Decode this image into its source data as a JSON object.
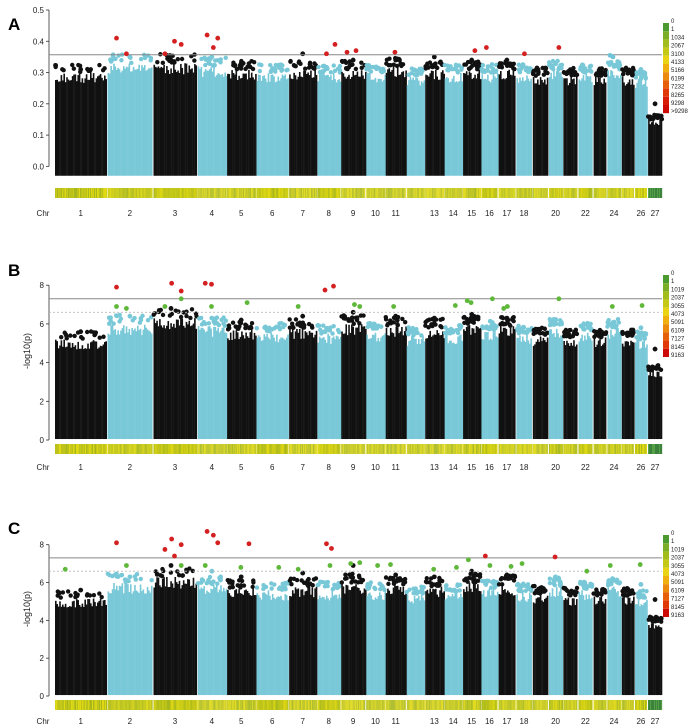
{
  "chart_data": [
    {
      "type": "scatter",
      "panel": "A",
      "ylabel": "",
      "ylim": [
        -0.05,
        0.5
      ],
      "yticks": [
        0.0,
        0.1,
        0.2,
        0.3,
        0.4,
        0.5
      ],
      "ytick_labels": [
        "0.0",
        "0.1",
        "0.2",
        "0.3",
        "0.4",
        "0.5"
      ],
      "thresholds": [
        0.357
      ],
      "dashed_thresholds": [],
      "xlabel_prefix": "Chr",
      "chromosome_labels": [
        "1",
        "2",
        "3",
        "4",
        "5",
        "6",
        "7",
        "8",
        "9",
        "10",
        "11",
        "13",
        "14",
        "15",
        "16",
        "17",
        "18",
        "20",
        "22",
        "24",
        "26",
        "27"
      ],
      "legend": [
        "0",
        "1",
        "1034",
        "2067",
        "3100",
        "4133",
        "5166",
        "6199",
        "7232",
        "8265",
        "9298",
        ">9298"
      ],
      "legend_colors": [
        "#2a7a2a",
        "#4a9a30",
        "#7aae28",
        "#a2bc1c",
        "#c6c818",
        "#e8d414",
        "#f0b010",
        "#ec8a0e",
        "#e6600c",
        "#e03a0a",
        "#d81e08",
        "#cc0a06"
      ],
      "series": [
        {
          "name": "significant",
          "color": "#d42020",
          "points": [
            [
              2,
              0.41
            ],
            [
              2,
              0.36
            ],
            [
              3,
              0.39
            ],
            [
              3,
              0.36
            ],
            [
              3,
              0.4
            ],
            [
              4,
              0.41
            ],
            [
              4,
              0.42
            ],
            [
              4,
              0.38
            ],
            [
              8,
              0.39
            ],
            [
              8,
              0.36
            ],
            [
              9,
              0.37
            ],
            [
              9,
              0.365
            ],
            [
              11,
              0.365
            ],
            [
              15,
              0.37
            ],
            [
              16,
              0.38
            ],
            [
              18,
              0.36
            ],
            [
              20,
              0.38
            ]
          ]
        },
        {
          "name": "top-non-significant",
          "color": "#6fc4d8",
          "points": [
            [
              24,
              0.355
            ],
            [
              24,
              0.35
            ]
          ]
        }
      ],
      "top_black": [
        [
          1,
          0.31
        ],
        [
          2,
          0.35
        ],
        [
          3,
          0.34
        ],
        [
          4,
          0.35
        ],
        [
          5,
          0.33
        ],
        [
          7,
          0.36
        ],
        [
          9,
          0.34
        ],
        [
          11,
          0.34
        ],
        [
          13,
          0.35
        ],
        [
          15,
          0.34
        ],
        [
          17,
          0.34
        ],
        [
          20,
          0.33
        ],
        [
          26,
          0.31
        ],
        [
          27,
          0.2
        ]
      ],
      "cloud_top": {
        "1": 0.3,
        "2": 0.33,
        "3": 0.33,
        "4": 0.32,
        "5": 0.31,
        "6": 0.3,
        "7": 0.31,
        "8": 0.3,
        "9": 0.31,
        "10": 0.3,
        "11": 0.32,
        "12": 0.29,
        "13": 0.31,
        "14": 0.3,
        "15": 0.31,
        "16": 0.3,
        "17": 0.31,
        "18": 0.3,
        "19": 0.29,
        "20": 0.31,
        "21": 0.29,
        "22": 0.3,
        "23": 0.29,
        "24": 0.31,
        "25": 0.29,
        "26": 0.28,
        "27": 0.15
      },
      "floor": -0.03
    },
    {
      "type": "scatter",
      "panel": "B",
      "ylabel": "-log10(p)",
      "ylim": [
        0,
        9.2
      ],
      "yticks": [
        0,
        2,
        4,
        6,
        8
      ],
      "ytick_labels": [
        "0",
        "2",
        "4",
        "6",
        "8"
      ],
      "thresholds": [
        7.3
      ],
      "dashed_thresholds": [
        6.6
      ],
      "xlabel_prefix": "Chr",
      "chromosome_labels": [
        "1",
        "2",
        "3",
        "4",
        "5",
        "6",
        "7",
        "8",
        "9",
        "10",
        "11",
        "13",
        "14",
        "15",
        "16",
        "17",
        "18",
        "20",
        "22",
        "24",
        "26",
        "27"
      ],
      "legend": [
        "0",
        "1",
        "1019",
        "2037",
        "3055",
        "4073",
        "5091",
        "6109",
        "7127",
        "8145",
        "9163"
      ],
      "legend_colors": [
        "#2a7a2a",
        "#4a9a30",
        "#7aae28",
        "#a2bc1c",
        "#c6c818",
        "#e8d414",
        "#f0b010",
        "#ec8a0e",
        "#e6600c",
        "#e03a0a",
        "#cc0a06"
      ],
      "series": [
        {
          "name": "significant",
          "color": "#d42020",
          "points": [
            [
              2,
              7.9
            ],
            [
              3,
              8.1
            ],
            [
              3,
              7.7
            ],
            [
              4,
              8.1
            ],
            [
              4,
              8.05
            ],
            [
              8,
              7.95
            ],
            [
              8,
              7.75
            ]
          ]
        },
        {
          "name": "suggestive",
          "color": "#5fb83a",
          "points": [
            [
              2,
              6.9
            ],
            [
              2,
              6.8
            ],
            [
              3,
              7.3
            ],
            [
              3,
              6.9
            ],
            [
              4,
              6.9
            ],
            [
              5,
              7.1
            ],
            [
              7,
              6.9
            ],
            [
              9,
              7.0
            ],
            [
              9,
              6.9
            ],
            [
              11,
              6.9
            ],
            [
              14,
              6.95
            ],
            [
              15,
              7.2
            ],
            [
              15,
              7.1
            ],
            [
              16,
              7.3
            ],
            [
              17,
              6.8
            ],
            [
              17,
              6.9
            ],
            [
              20,
              7.3
            ],
            [
              24,
              6.9
            ],
            [
              26,
              6.95
            ]
          ]
        }
      ],
      "top_black": [
        [
          1,
          5.6
        ],
        [
          2,
          6.4
        ],
        [
          3,
          6.8
        ],
        [
          4,
          6.3
        ],
        [
          5,
          6.2
        ],
        [
          7,
          6.4
        ],
        [
          9,
          6.6
        ],
        [
          11,
          6.4
        ],
        [
          13,
          6.3
        ],
        [
          15,
          6.5
        ],
        [
          17,
          6.3
        ],
        [
          20,
          6.2
        ],
        [
          26,
          5.8
        ],
        [
          27,
          4.7
        ]
      ],
      "cloud_top": {
        "1": 5.2,
        "2": 6.0,
        "3": 6.3,
        "4": 5.9,
        "5": 5.7,
        "6": 5.6,
        "7": 5.8,
        "8": 5.5,
        "9": 6.0,
        "10": 5.6,
        "11": 5.9,
        "12": 5.4,
        "13": 5.8,
        "14": 5.5,
        "15": 6.0,
        "16": 5.7,
        "17": 5.9,
        "18": 5.5,
        "19": 5.4,
        "20": 5.8,
        "21": 5.3,
        "22": 5.6,
        "23": 5.3,
        "24": 5.8,
        "25": 5.3,
        "26": 5.2,
        "27": 3.6
      },
      "floor": 0.05
    },
    {
      "type": "scatter",
      "panel": "C",
      "ylabel": "-log10(p)",
      "ylim": [
        0,
        9.2
      ],
      "yticks": [
        0,
        2,
        4,
        6,
        8
      ],
      "ytick_labels": [
        "0",
        "2",
        "4",
        "6",
        "8"
      ],
      "thresholds": [
        7.3
      ],
      "dashed_thresholds": [
        6.6
      ],
      "xlabel_prefix": "Chr",
      "chromosome_labels": [
        "1",
        "2",
        "3",
        "4",
        "5",
        "6",
        "7",
        "8",
        "9",
        "10",
        "11",
        "13",
        "14",
        "15",
        "16",
        "17",
        "18",
        "20",
        "22",
        "24",
        "26",
        "27"
      ],
      "legend": [
        "0",
        "1",
        "1019",
        "2037",
        "3055",
        "4073",
        "5091",
        "6109",
        "7127",
        "8145",
        "9163"
      ],
      "legend_colors": [
        "#2a7a2a",
        "#4a9a30",
        "#7aae28",
        "#a2bc1c",
        "#c6c818",
        "#e8d414",
        "#f0b010",
        "#ec8a0e",
        "#e6600c",
        "#e03a0a",
        "#cc0a06"
      ],
      "series": [
        {
          "name": "significant",
          "color": "#d42020",
          "points": [
            [
              2,
              8.1
            ],
            [
              3,
              8.3
            ],
            [
              3,
              8.0
            ],
            [
              3,
              7.75
            ],
            [
              3,
              7.4
            ],
            [
              4,
              8.1
            ],
            [
              4,
              8.7
            ],
            [
              4,
              8.5
            ],
            [
              5,
              8.05
            ],
            [
              8,
              8.05
            ],
            [
              8,
              7.8
            ],
            [
              16,
              7.4
            ],
            [
              20,
              7.35
            ]
          ]
        },
        {
          "name": "suggestive",
          "color": "#5fb83a",
          "points": [
            [
              1,
              6.7
            ],
            [
              2,
              6.9
            ],
            [
              3,
              6.9
            ],
            [
              4,
              6.9
            ],
            [
              5,
              6.8
            ],
            [
              6,
              6.8
            ],
            [
              7,
              6.7
            ],
            [
              8,
              6.9
            ],
            [
              9,
              7.05
            ],
            [
              9,
              7.0
            ],
            [
              10,
              6.9
            ],
            [
              11,
              6.95
            ],
            [
              13,
              6.7
            ],
            [
              14,
              6.8
            ],
            [
              15,
              7.2
            ],
            [
              16,
              6.9
            ],
            [
              17,
              6.85
            ],
            [
              18,
              7.0
            ],
            [
              22,
              6.6
            ],
            [
              24,
              6.9
            ],
            [
              26,
              6.95
            ]
          ]
        }
      ],
      "top_black": [
        [
          1,
          5.6
        ],
        [
          2,
          6.3
        ],
        [
          3,
          6.9
        ],
        [
          4,
          6.6
        ],
        [
          5,
          6.3
        ],
        [
          7,
          6.5
        ],
        [
          9,
          6.9
        ],
        [
          11,
          6.4
        ],
        [
          13,
          6.3
        ],
        [
          15,
          6.6
        ],
        [
          17,
          6.4
        ],
        [
          20,
          6.3
        ],
        [
          26,
          5.9
        ],
        [
          27,
          5.1
        ]
      ],
      "cloud_top": {
        "1": 5.2,
        "2": 6.0,
        "3": 6.3,
        "4": 5.9,
        "5": 5.7,
        "6": 5.6,
        "7": 5.8,
        "8": 5.6,
        "9": 6.0,
        "10": 5.6,
        "11": 5.9,
        "12": 5.4,
        "13": 5.8,
        "14": 5.5,
        "15": 6.0,
        "16": 5.7,
        "17": 5.9,
        "18": 5.5,
        "19": 5.4,
        "20": 5.8,
        "21": 5.3,
        "22": 5.6,
        "23": 5.3,
        "24": 5.8,
        "25": 5.3,
        "26": 5.2,
        "27": 3.9
      },
      "floor": 0.05
    }
  ],
  "colors": {
    "odd_chr": "#111111",
    "even_chr": "#78c8d8",
    "threshold_line": "#888888",
    "dashed_line": "#bbbbbb"
  }
}
